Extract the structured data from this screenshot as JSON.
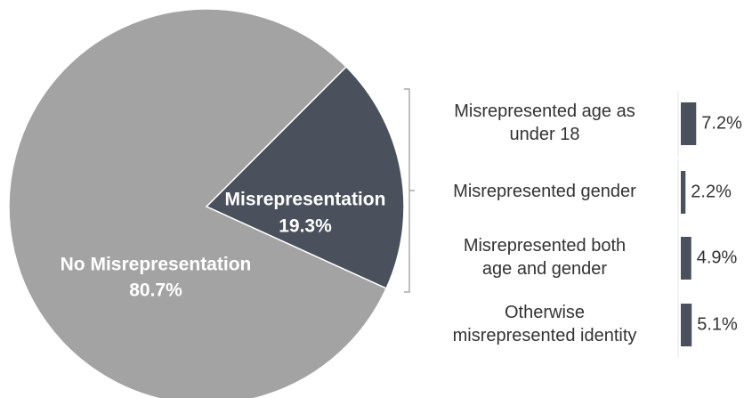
{
  "chart_data": [
    {
      "type": "pie",
      "categories": [
        "Misrepresentation",
        "No Misrepresentation"
      ],
      "values": [
        19.3,
        80.7
      ],
      "value_labels": [
        "19.3%",
        "80.7%"
      ],
      "colors": [
        "#4a505c",
        "#a3a3a3"
      ]
    },
    {
      "type": "bar",
      "categories": [
        "Misrepresented age as\nunder 18",
        "Misrepresented gender",
        "Misrepresented both\nage and gender",
        "Otherwise\nmisrepresented identity"
      ],
      "values": [
        7.2,
        2.2,
        4.9,
        5.1
      ],
      "value_labels": [
        "7.2%",
        "2.2%",
        "4.9%",
        "5.1%"
      ],
      "color": "#4a505c"
    }
  ]
}
